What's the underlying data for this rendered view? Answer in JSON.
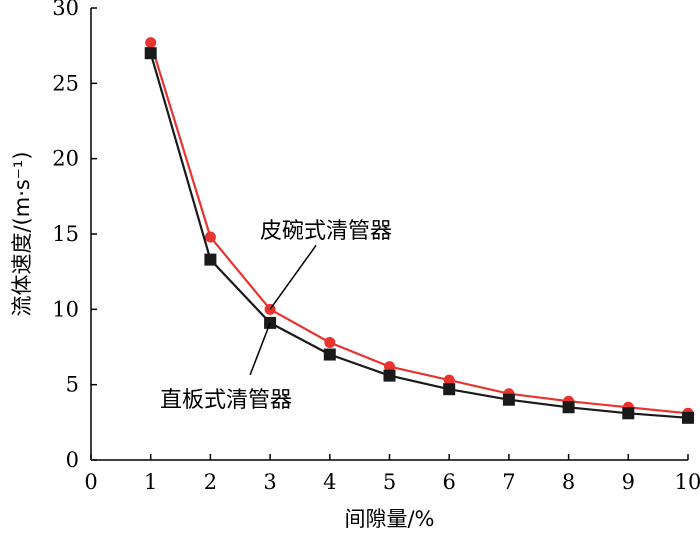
{
  "chart_data": {
    "type": "line",
    "xlabel": "间隙量/%",
    "ylabel": "流体速度/(m·s⁻¹)",
    "xlim": [
      0,
      10
    ],
    "ylim": [
      0,
      30
    ],
    "x_ticks": [
      "0",
      "1",
      "2",
      "3",
      "4",
      "5",
      "6",
      "7",
      "8",
      "9",
      "10"
    ],
    "y_ticks": [
      "0",
      "5",
      "10",
      "15",
      "20",
      "25",
      "30"
    ],
    "grid": false,
    "x": [
      1,
      2,
      3,
      4,
      5,
      6,
      7,
      8,
      9,
      10
    ],
    "series": [
      {
        "name": "皮碗式清管器",
        "color": "#e8332e",
        "marker": "circle",
        "values": [
          27.7,
          14.8,
          10.0,
          7.8,
          6.2,
          5.3,
          4.4,
          3.9,
          3.5,
          3.1
        ]
      },
      {
        "name": "直板式清管器",
        "color": "#1a1a1a",
        "marker": "square",
        "values": [
          27.0,
          13.3,
          9.1,
          7.0,
          5.6,
          4.7,
          4.0,
          3.5,
          3.1,
          2.8
        ]
      }
    ]
  }
}
